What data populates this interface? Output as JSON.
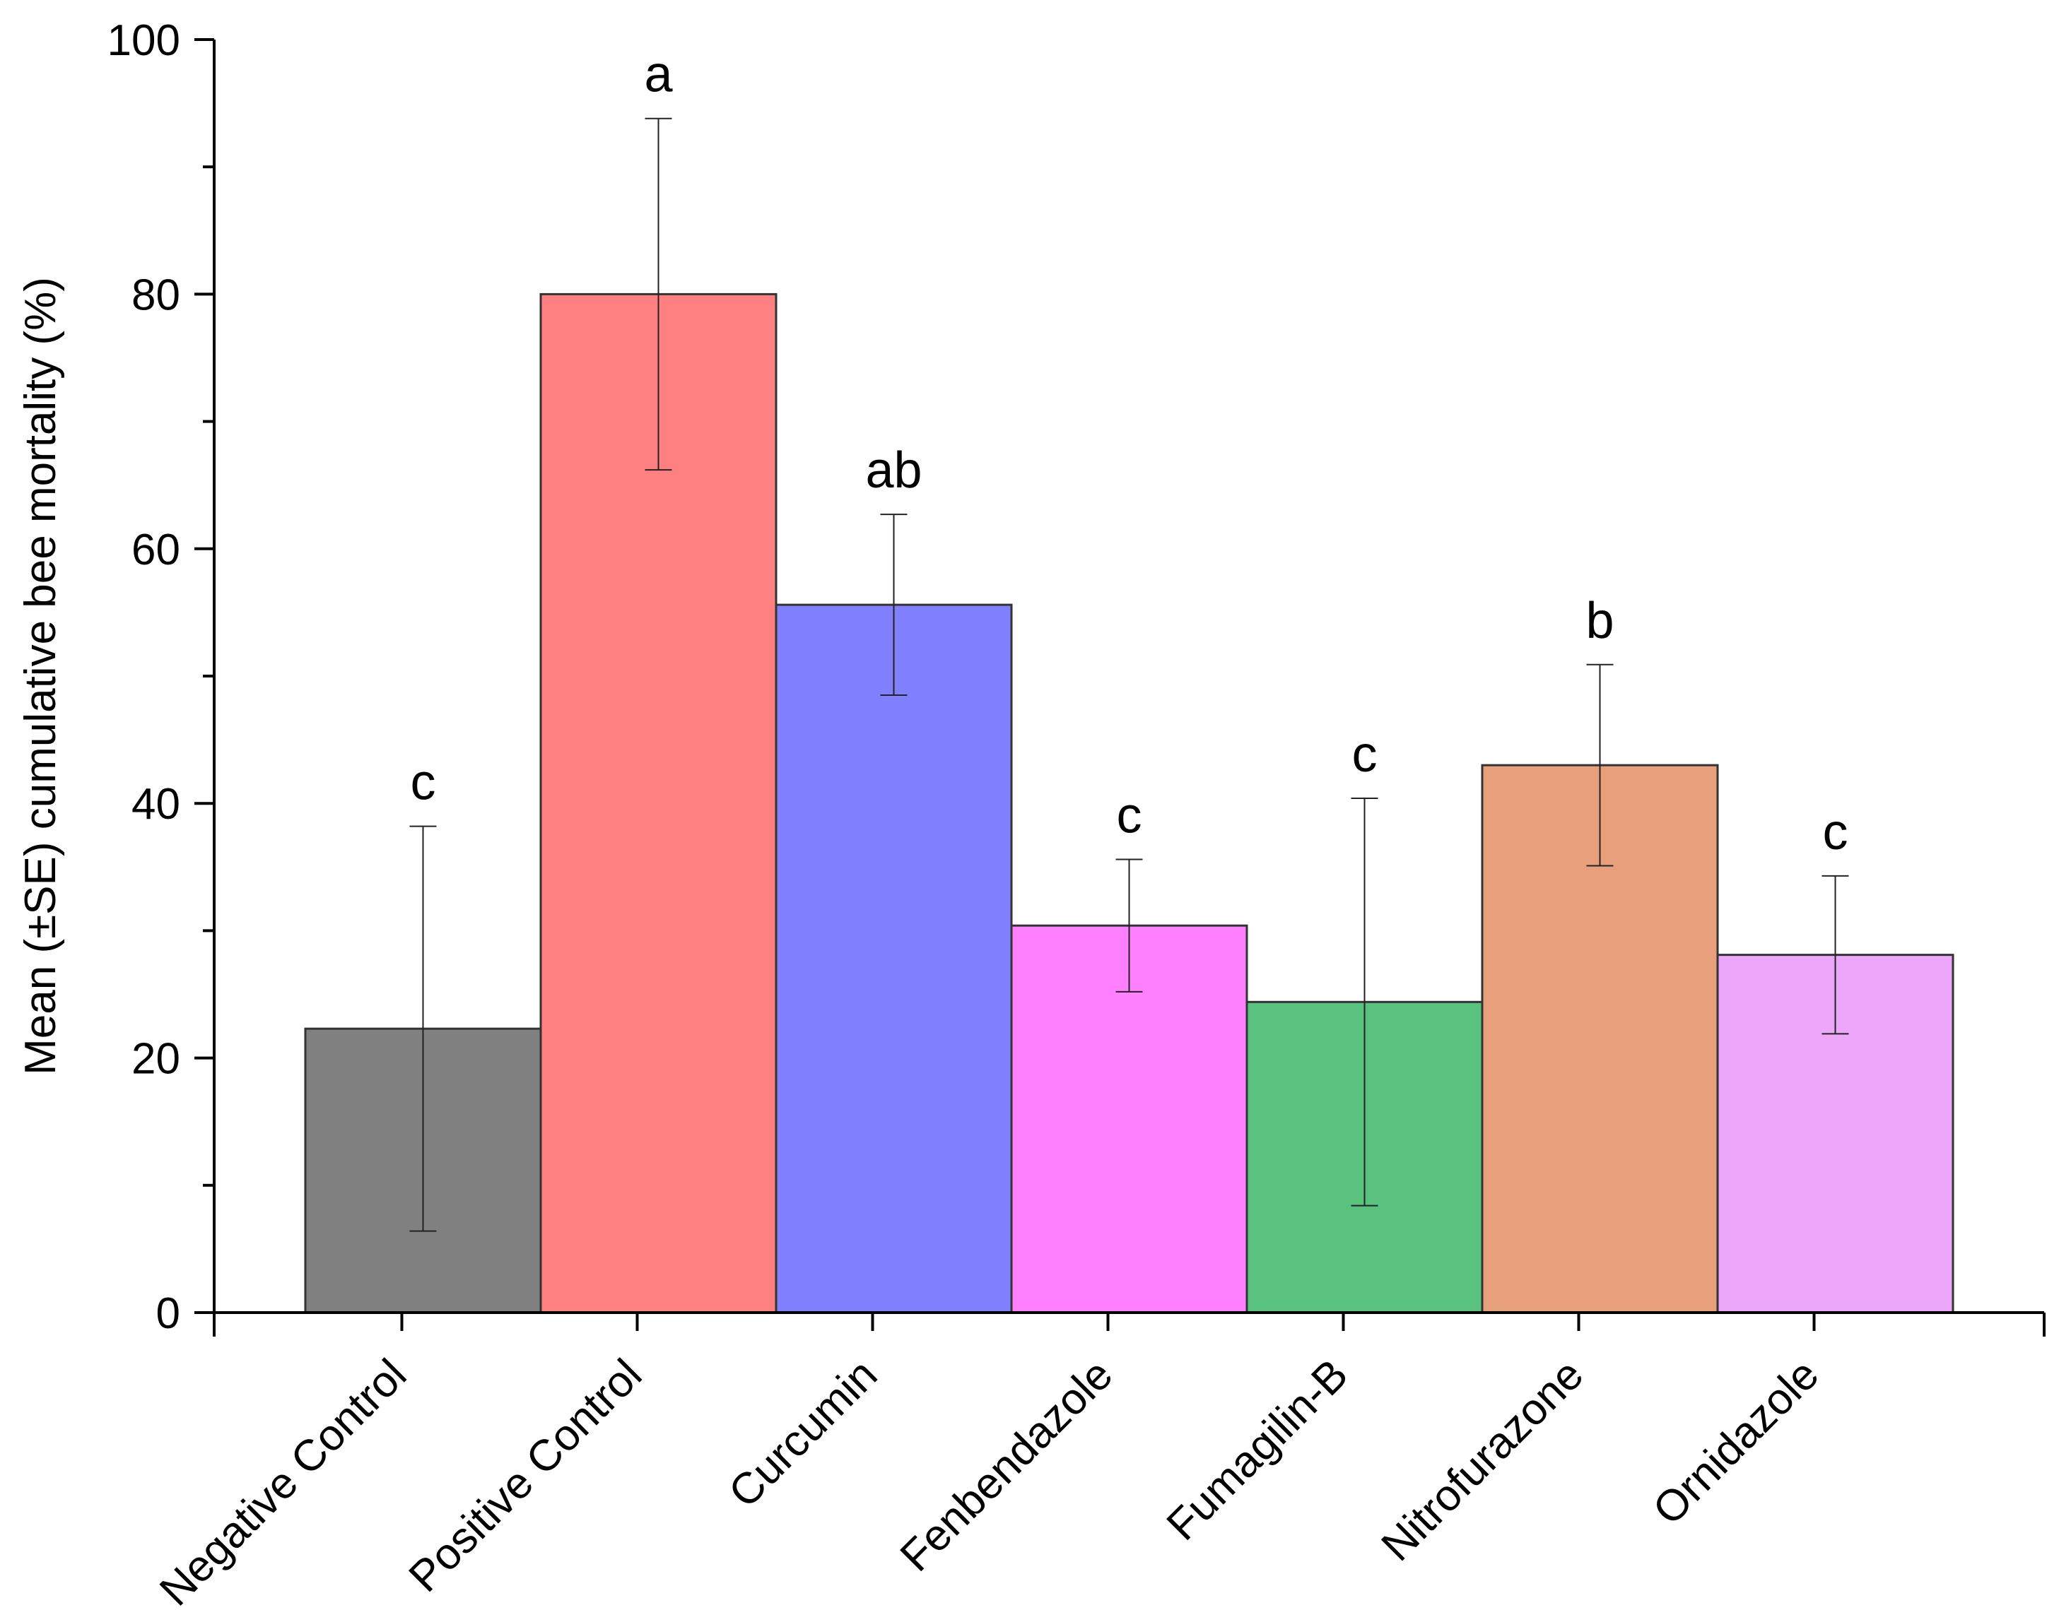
{
  "chart_data": {
    "type": "bar",
    "title": "",
    "xlabel": "",
    "ylabel": "Mean (±SE) cumulative bee mortality (%)",
    "ylim": [
      0,
      100
    ],
    "yticks": [
      0,
      20,
      40,
      60,
      80,
      100
    ],
    "y_minor_tick_step": 10,
    "grid": false,
    "legend": "none",
    "categories": [
      "Negative Control",
      "Positive Control",
      "Curcumin",
      "Fenbendazole",
      "Fumagilin-B",
      "Nitrofurazone",
      "Ornidazole"
    ],
    "values": [
      22.3,
      80.0,
      55.6,
      30.4,
      24.4,
      43.0,
      28.1
    ],
    "error_se": [
      15.9,
      13.8,
      7.1,
      5.2,
      16.0,
      7.9,
      6.2
    ],
    "significance_letters": [
      "c",
      "a",
      "ab",
      "c",
      "c",
      "b",
      "c"
    ],
    "colors": [
      "#808080",
      "#FF8080",
      "#8080FF",
      "#FF80FF",
      "#58C27E",
      "#E8A07C",
      "#ECA6FA"
    ]
  }
}
